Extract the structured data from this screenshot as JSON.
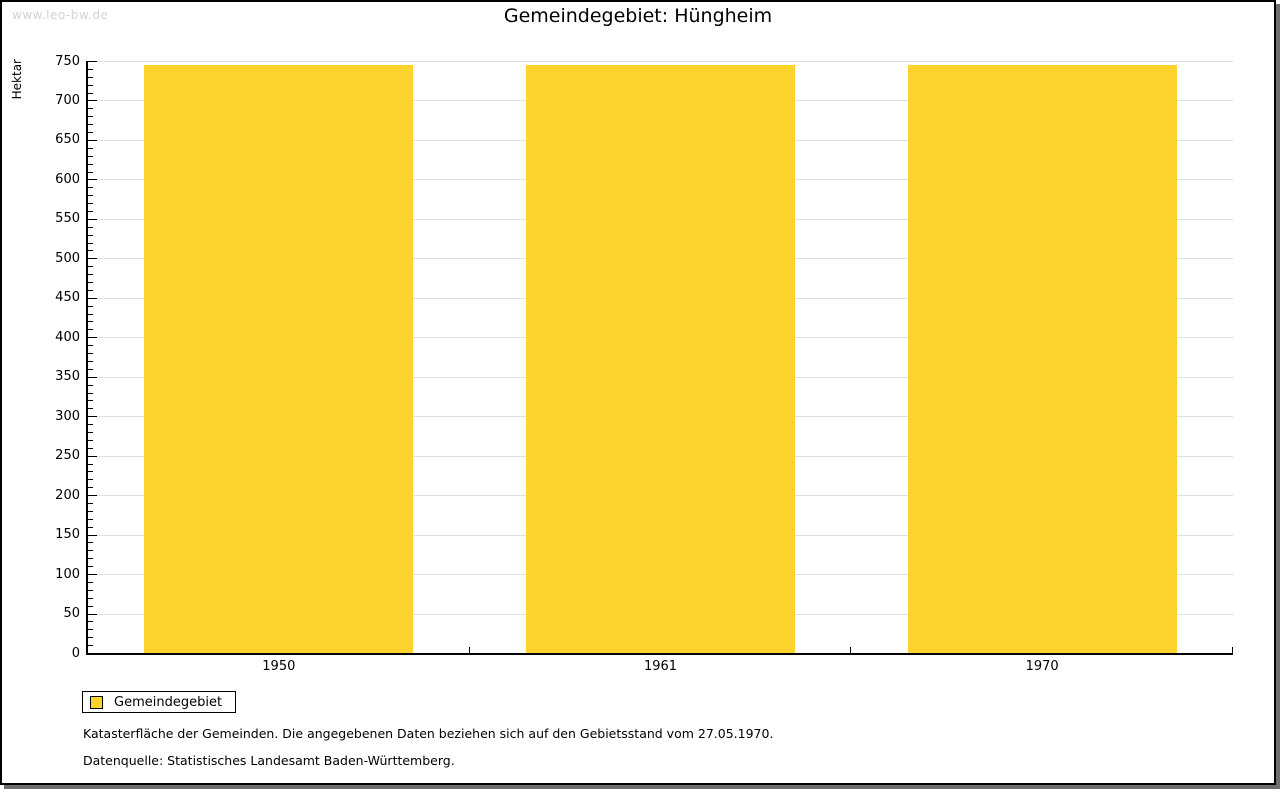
{
  "page": {
    "watermark": "www.leo-bw.de",
    "title": "Gemeindegebiet: Hüngheim"
  },
  "chart_data": {
    "type": "bar",
    "title": "Gemeindegebiet: Hüngheim",
    "categories": [
      "1950",
      "1961",
      "1970"
    ],
    "series": [
      {
        "name": "Gemeindegebiet",
        "values": [
          745,
          745,
          745
        ]
      }
    ],
    "xlabel": "",
    "ylabel": "Hektar",
    "ylim": [
      0,
      750
    ],
    "y_major_step": 50,
    "y_minor_step": 10,
    "grid": true,
    "bar_color": "#fcd42d",
    "legend_position": "bottom-left"
  },
  "legend": {
    "items": [
      {
        "label": "Gemeindegebiet",
        "color": "#fcd42d"
      }
    ]
  },
  "footer": {
    "line1": "Katasterfläche der Gemeinden. Die angegebenen Daten beziehen sich auf den Gebietsstand vom 27.05.1970.",
    "line2": "Datenquelle: Statistisches Landesamt Baden-Württemberg."
  },
  "colors": {
    "bar": "#fcd42d",
    "gridline": "#e0e0e0",
    "axis": "#000000",
    "watermark": "#d3d3d3",
    "frame_shadow": "#6e6e6e"
  }
}
